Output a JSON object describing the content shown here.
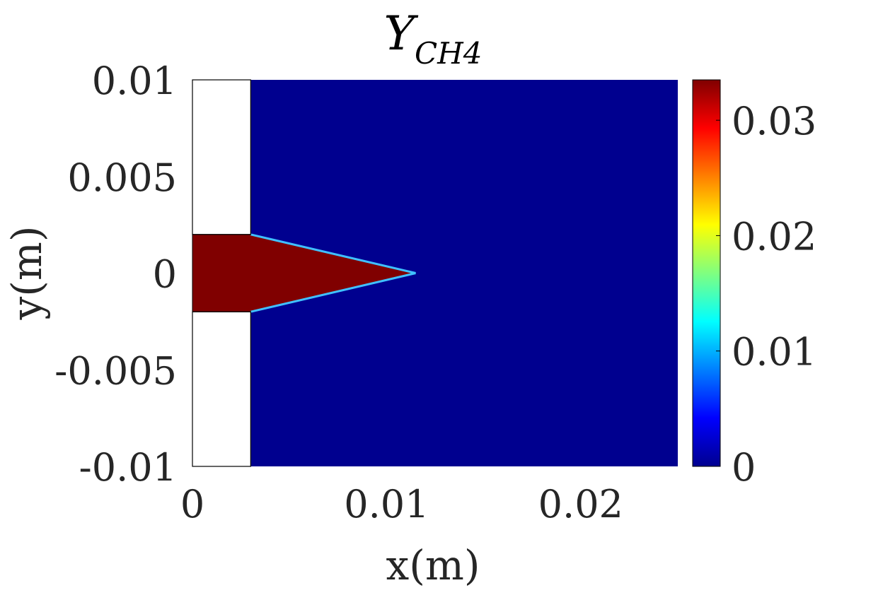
{
  "chart_data": {
    "type": "heatmap",
    "title": "Y",
    "title_subscript": "CH4",
    "xlabel": "x(m)",
    "ylabel": "y(m)",
    "xlim": [
      0,
      0.025
    ],
    "ylim": [
      -0.01,
      0.01
    ],
    "x_ticks": [
      0,
      0.01,
      0.02
    ],
    "x_tick_labels": [
      "0",
      "0.01",
      "0.02"
    ],
    "y_ticks": [
      0.01,
      0.005,
      0,
      -0.005,
      -0.01
    ],
    "y_tick_labels": [
      "0.01",
      "0.005",
      "0",
      "-0.005",
      "-0.01"
    ],
    "colorbar": {
      "colormap": "jet",
      "clim": [
        0,
        0.0335
      ],
      "ticks": [
        0.03,
        0.02,
        0.01,
        0
      ],
      "tick_labels": [
        "0.03",
        "0.02",
        "0.01",
        "0"
      ]
    },
    "inlet_wall_x": 0.003,
    "fuel_jet_half_width": 0.002,
    "fuel_tip_x": 0.0115,
    "fuel_mass_fraction": 0.0335,
    "background_mass_fraction": 0,
    "colors": {
      "high": "#800000",
      "low": "#00008f",
      "blank": "#ffffff"
    }
  }
}
